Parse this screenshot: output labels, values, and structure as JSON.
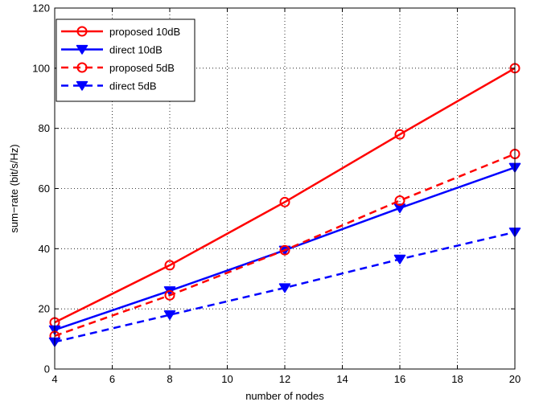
{
  "chart_data": {
    "type": "line",
    "title": "",
    "xlabel": "number of nodes",
    "ylabel": "sum−rate (bit/s/Hz)",
    "xlim": [
      4,
      20
    ],
    "ylim": [
      0,
      120
    ],
    "xticks": [
      4,
      6,
      8,
      10,
      12,
      14,
      16,
      18,
      20
    ],
    "yticks": [
      0,
      20,
      40,
      60,
      80,
      100,
      120
    ],
    "grid": true,
    "legend_position": "top-left",
    "x": [
      4,
      8,
      12,
      16,
      20
    ],
    "series": [
      {
        "name": "proposed 10dB",
        "values": [
          15.5,
          34.5,
          55.5,
          78,
          100
        ],
        "color": "#ff0000",
        "dash": "solid",
        "marker": "circle"
      },
      {
        "name": "direct 10dB",
        "values": [
          13,
          26,
          39.5,
          53.5,
          67
        ],
        "color": "#0000ff",
        "dash": "solid",
        "marker": "triangle-down"
      },
      {
        "name": "proposed 5dB",
        "values": [
          11,
          24.5,
          39.5,
          56,
          71.5
        ],
        "color": "#ff0000",
        "dash": "dashed",
        "marker": "circle"
      },
      {
        "name": "direct 5dB",
        "values": [
          9,
          18,
          27,
          36.5,
          45.5
        ],
        "color": "#0000ff",
        "dash": "dashed",
        "marker": "triangle-down"
      }
    ]
  }
}
